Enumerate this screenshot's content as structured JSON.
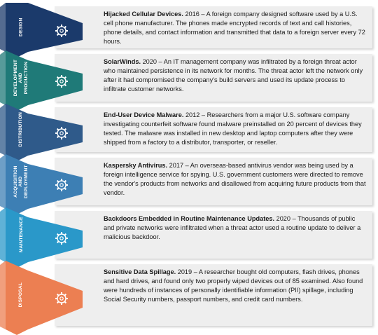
{
  "colors": [
    "#1b3a6b",
    "#1f7a78",
    "#2f5a8a",
    "#3d7fb4",
    "#2a98c9",
    "#ec7f52"
  ],
  "stages": [
    {
      "label": "DESIGN",
      "icon": "gear-pencil-icon",
      "title": "Hijacked Cellular Devices.",
      "text": " 2016 – A foreign company designed software used by a U.S. cell phone manufacturer. The phones made encrypted records of text and call histories, phone details, and contact information and transmitted that data to a foreign server every 72 hours."
    },
    {
      "label": "DEVELOPMENT AND PRODUCTION",
      "icon": "gear-icon",
      "title": "SolarWinds.",
      "text": " 2020 – An IT management company was infiltrated by a foreign threat actor who maintained persistence in its network for months. The threat actor left the network only after it had compromised the company's build servers and used its update process to infiltrate customer networks."
    },
    {
      "label": "DISTRIBUTION",
      "icon": "hand-gear-icon",
      "title": "End-User Device Malware.",
      "text": " 2012 – Researchers from a major U.S. software company investigating counterfeit software found malware preinstalled on 20 percent of devices they tested. The malware was installed in new desktop and laptop computers after they were shipped from a factory to a distributor, transporter, or reseller."
    },
    {
      "label": "ACQUISITION AND DEPLOYMENT",
      "icon": "gear-cursor-icon",
      "title": "Kaspersky Antivirus.",
      "text": " 2017 – An overseas-based antivirus vendor was being used by a foreign intelligence service for spying. U.S. government customers were directed to remove the vendor's products from networks and disallowed from acquiring future products from that vendor."
    },
    {
      "label": "MAINTENANCE",
      "icon": "gears-icon",
      "title": "Backdoors Embedded in Routine Maintenance Updates.",
      "text": " 2020 – Thousands of public and private networks were infiltrated when a threat actor used a routine update to deliver a malicious backdoor."
    },
    {
      "label": "DISPOSAL",
      "icon": "recycle-gear-icon",
      "title": "Sensitive Data Spillage.",
      "text": " 2019 – A researcher bought old computers, flash drives, phones and hard drives, and found only two properly wiped devices out of 85 examined. Also found were hundreds of instances of personally identifiable information (PII) spillage, including Social Security numbers, passport numbers, and credit card numbers."
    }
  ]
}
